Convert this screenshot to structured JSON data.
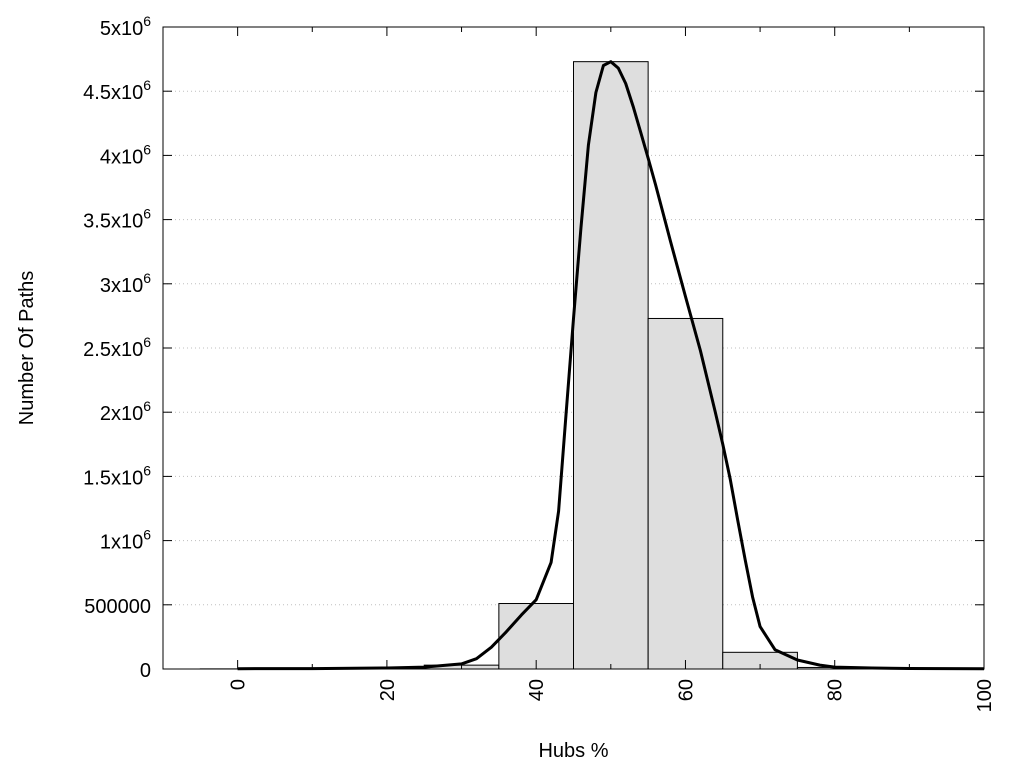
{
  "chart_data": {
    "type": "bar",
    "xlabel": "Hubs %",
    "ylabel": "Number Of Paths",
    "xlim": [
      -10,
      100
    ],
    "ylim": [
      0,
      5000000
    ],
    "grid": "horizontal-dotted",
    "x_ticks": [
      {
        "value": 0,
        "label": "0"
      },
      {
        "value": 20,
        "label": "20"
      },
      {
        "value": 40,
        "label": "40"
      },
      {
        "value": 60,
        "label": "60"
      },
      {
        "value": 80,
        "label": "80"
      },
      {
        "value": 100,
        "label": "100"
      }
    ],
    "y_ticks": [
      {
        "value": 0,
        "label": "0",
        "sup": ""
      },
      {
        "value": 500000,
        "label": "500000",
        "sup": ""
      },
      {
        "value": 1000000,
        "label": "1x10",
        "sup": "6"
      },
      {
        "value": 1500000,
        "label": "1.5x10",
        "sup": "6"
      },
      {
        "value": 2000000,
        "label": "2x10",
        "sup": "6"
      },
      {
        "value": 2500000,
        "label": "2.5x10",
        "sup": "6"
      },
      {
        "value": 3000000,
        "label": "3x10",
        "sup": "6"
      },
      {
        "value": 3500000,
        "label": "3.5x10",
        "sup": "6"
      },
      {
        "value": 4000000,
        "label": "4x10",
        "sup": "6"
      },
      {
        "value": 4500000,
        "label": "4.5x10",
        "sup": "6"
      },
      {
        "value": 5000000,
        "label": "5x10",
        "sup": "6"
      }
    ],
    "histogram": {
      "bin_width": 10,
      "bins": [
        {
          "center": 0,
          "value": 1000
        },
        {
          "center": 10,
          "value": 3000
        },
        {
          "center": 20,
          "value": 8000
        },
        {
          "center": 30,
          "value": 30000
        },
        {
          "center": 40,
          "value": 510000
        },
        {
          "center": 50,
          "value": 4730000
        },
        {
          "center": 60,
          "value": 2730000
        },
        {
          "center": 70,
          "value": 130000
        },
        {
          "center": 80,
          "value": 12000
        },
        {
          "center": 90,
          "value": 3000
        },
        {
          "center": 100,
          "value": 1000
        }
      ]
    },
    "curve": {
      "x": [
        0,
        10,
        20,
        25,
        30,
        32,
        34,
        36,
        38,
        40,
        42,
        43,
        44,
        45,
        46,
        47,
        48,
        49,
        50,
        51,
        52,
        53,
        54,
        55,
        56,
        57,
        58,
        60,
        62,
        64,
        65,
        66,
        67,
        68,
        69,
        70,
        72,
        75,
        78,
        80,
        85,
        90,
        100
      ],
      "y": [
        2000,
        3000,
        8000,
        15000,
        40000,
        80000,
        170000,
        290000,
        420000,
        540000,
        830000,
        1230000,
        1980000,
        2730000,
        3440000,
        4080000,
        4490000,
        4700000,
        4730000,
        4680000,
        4560000,
        4380000,
        4180000,
        3980000,
        3770000,
        3550000,
        3330000,
        2900000,
        2480000,
        2000000,
        1750000,
        1480000,
        1160000,
        850000,
        560000,
        330000,
        150000,
        70000,
        30000,
        15000,
        8000,
        4000,
        2000
      ]
    }
  }
}
